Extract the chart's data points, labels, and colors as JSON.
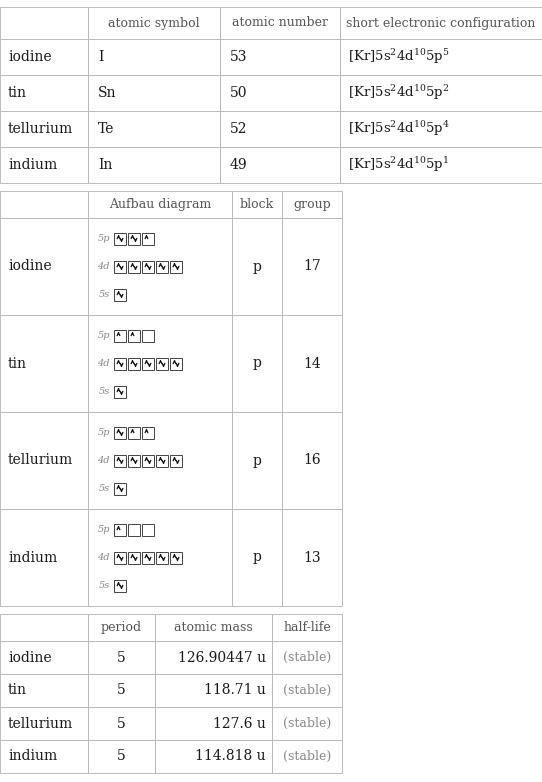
{
  "elements": [
    "iodine",
    "tin",
    "tellurium",
    "indium"
  ],
  "atomic_symbols": [
    "I",
    "Sn",
    "Te",
    "In"
  ],
  "atomic_numbers": [
    "53",
    "50",
    "52",
    "49"
  ],
  "elec_config_parts": [
    {
      "prefix": "[Kr]5s",
      "s_sup": "2",
      "d": "4d",
      "d_sup": "10",
      "p": "5p",
      "p_sup": "5"
    },
    {
      "prefix": "[Kr]5s",
      "s_sup": "2",
      "d": "4d",
      "d_sup": "10",
      "p": "5p",
      "p_sup": "2"
    },
    {
      "prefix": "[Kr]5s",
      "s_sup": "2",
      "d": "4d",
      "d_sup": "10",
      "p": "5p",
      "p_sup": "4"
    },
    {
      "prefix": "[Kr]5s",
      "s_sup": "2",
      "d": "4d",
      "d_sup": "10",
      "p": "5p",
      "p_sup": "1"
    }
  ],
  "blocks": [
    "p",
    "p",
    "p",
    "p"
  ],
  "groups": [
    "17",
    "14",
    "16",
    "13"
  ],
  "periods": [
    "5",
    "5",
    "5",
    "5"
  ],
  "atomic_masses": [
    "126.90447 u",
    "118.71 u",
    "127.6 u",
    "114.818 u"
  ],
  "half_lives": [
    "(stable)",
    "(stable)",
    "(stable)",
    "(stable)"
  ],
  "aufbau": [
    {
      "5p": [
        2,
        2,
        1
      ],
      "4d": [
        2,
        2,
        2,
        2,
        2
      ],
      "5s": [
        2
      ]
    },
    {
      "5p": [
        1,
        1,
        0
      ],
      "4d": [
        2,
        2,
        2,
        2,
        2
      ],
      "5s": [
        2
      ]
    },
    {
      "5p": [
        2,
        1,
        1
      ],
      "4d": [
        2,
        2,
        2,
        2,
        2
      ],
      "5s": [
        2
      ]
    },
    {
      "5p": [
        1,
        0,
        0
      ],
      "4d": [
        2,
        2,
        2,
        2,
        2
      ],
      "5s": [
        2
      ]
    }
  ],
  "bg_color": "#ffffff",
  "line_color": "#bbbbbb",
  "text_color": "#1a1a1a",
  "header_color": "#555555",
  "stable_color": "#888888",
  "arrow_color": "#111111",
  "label_color": "#888888"
}
